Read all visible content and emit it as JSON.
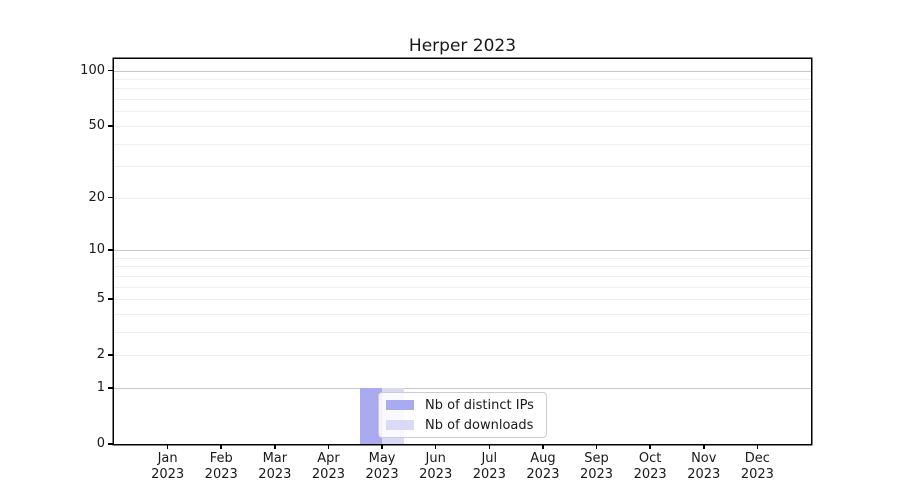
{
  "chart_data": {
    "type": "bar",
    "title": "Herper 2023",
    "categories": [
      "Jan 2023",
      "Feb 2023",
      "Mar 2023",
      "Apr 2023",
      "May 2023",
      "Jun 2023",
      "Jul 2023",
      "Aug 2023",
      "Sep 2023",
      "Oct 2023",
      "Nov 2023",
      "Dec 2023"
    ],
    "series": [
      {
        "name": "Nb of distinct IPs",
        "color": "#aaaaf0",
        "values": [
          0,
          0,
          0,
          0,
          1,
          0,
          0,
          0,
          0,
          0,
          0,
          0
        ]
      },
      {
        "name": "Nb of downloads",
        "color": "#dadaf7",
        "values": [
          0,
          0,
          0,
          0,
          1,
          0,
          0,
          0,
          0,
          0,
          0,
          0
        ]
      }
    ],
    "xlabel": "",
    "ylabel": "",
    "y_axis": {
      "scale": "log10(1+v)",
      "ticks": [
        0,
        1,
        2,
        5,
        10,
        20,
        50,
        100
      ],
      "minor_gridlines": [
        2,
        3,
        4,
        5,
        6,
        7,
        8,
        9,
        20,
        30,
        40,
        50,
        60,
        70,
        80,
        90
      ],
      "major_gridlines": [
        1,
        10,
        100
      ],
      "top_value": 116
    },
    "legend": {
      "position": "bottom-center-inside"
    },
    "grid": true,
    "colors": {
      "frame": "#000000",
      "grid_major": "#c8c8c8",
      "grid_minor": "#efefef",
      "text": "#1a1a1a",
      "legend_border": "#cccccc"
    }
  }
}
